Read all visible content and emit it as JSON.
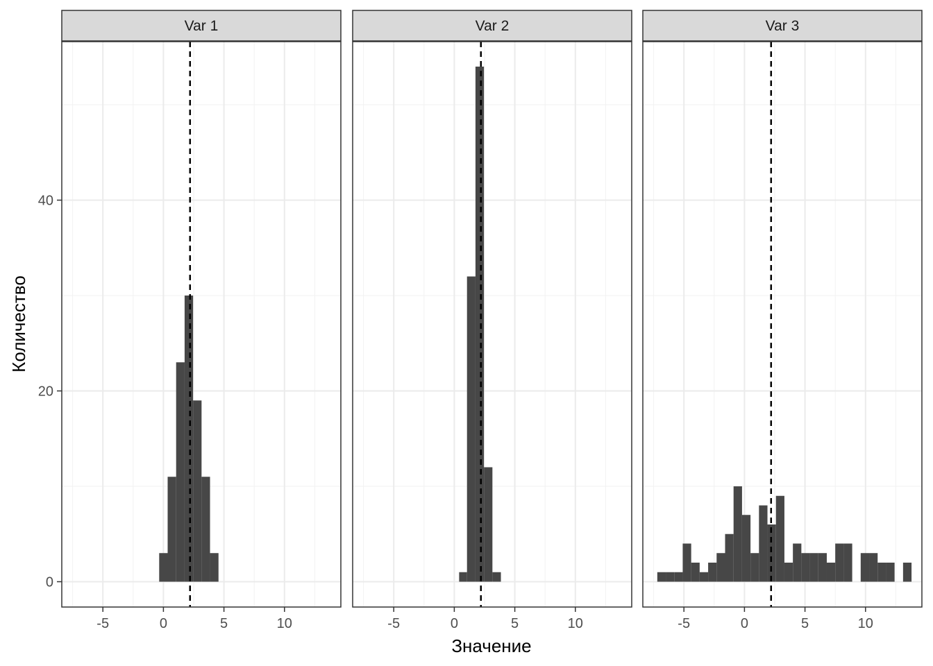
{
  "chart_data": {
    "type": "bar",
    "xlabel": "Значение",
    "ylabel": "Количество",
    "xlim": [
      -8,
      15
    ],
    "ylim": [
      -2.5,
      57.5
    ],
    "x_ticks": [
      -5,
      0,
      5,
      10
    ],
    "x_tick_labels": [
      "-5",
      "0",
      "5",
      "10"
    ],
    "y_ticks": [
      0,
      20,
      40
    ],
    "y_tick_labels": [
      "0",
      "20",
      "40"
    ],
    "grid": true,
    "bar_color": "#474747",
    "reference_line": {
      "x": 2.2,
      "style": "dashed",
      "color": "#000000"
    },
    "facets": [
      {
        "label": "Var 1",
        "bins": [
          {
            "x0": -0.35,
            "x1": 0.35,
            "count": 3
          },
          {
            "x0": 0.35,
            "x1": 1.05,
            "count": 11
          },
          {
            "x0": 1.05,
            "x1": 1.75,
            "count": 23
          },
          {
            "x0": 1.75,
            "x1": 2.45,
            "count": 30
          },
          {
            "x0": 2.45,
            "x1": 3.15,
            "count": 19
          },
          {
            "x0": 3.15,
            "x1": 3.85,
            "count": 11
          },
          {
            "x0": 3.85,
            "x1": 4.55,
            "count": 3
          }
        ]
      },
      {
        "label": "Var 2",
        "bins": [
          {
            "x0": 0.4,
            "x1": 1.05,
            "count": 1
          },
          {
            "x0": 1.05,
            "x1": 1.75,
            "count": 32
          },
          {
            "x0": 1.75,
            "x1": 2.45,
            "count": 54
          },
          {
            "x0": 2.45,
            "x1": 3.15,
            "count": 12
          },
          {
            "x0": 3.15,
            "x1": 3.85,
            "count": 1
          }
        ]
      },
      {
        "label": "Var 3",
        "bins": [
          {
            "x0": -7.2,
            "x1": -6.5,
            "count": 1
          },
          {
            "x0": -6.5,
            "x1": -5.8,
            "count": 1
          },
          {
            "x0": -5.8,
            "x1": -5.1,
            "count": 1
          },
          {
            "x0": -5.1,
            "x1": -4.4,
            "count": 4
          },
          {
            "x0": -4.4,
            "x1": -3.7,
            "count": 2
          },
          {
            "x0": -3.7,
            "x1": -3.0,
            "count": 1
          },
          {
            "x0": -3.0,
            "x1": -2.3,
            "count": 2
          },
          {
            "x0": -2.3,
            "x1": -1.6,
            "count": 3
          },
          {
            "x0": -1.6,
            "x1": -0.9,
            "count": 5
          },
          {
            "x0": -0.9,
            "x1": -0.2,
            "count": 10
          },
          {
            "x0": -0.2,
            "x1": 0.5,
            "count": 7
          },
          {
            "x0": 0.5,
            "x1": 1.2,
            "count": 3
          },
          {
            "x0": 1.2,
            "x1": 1.9,
            "count": 8
          },
          {
            "x0": 1.9,
            "x1": 2.6,
            "count": 6
          },
          {
            "x0": 2.6,
            "x1": 3.3,
            "count": 9
          },
          {
            "x0": 3.3,
            "x1": 4.0,
            "count": 2
          },
          {
            "x0": 4.0,
            "x1": 4.7,
            "count": 4
          },
          {
            "x0": 4.7,
            "x1": 5.4,
            "count": 3
          },
          {
            "x0": 5.4,
            "x1": 6.1,
            "count": 3
          },
          {
            "x0": 6.1,
            "x1": 6.8,
            "count": 3
          },
          {
            "x0": 6.8,
            "x1": 7.5,
            "count": 2
          },
          {
            "x0": 7.5,
            "x1": 8.2,
            "count": 4
          },
          {
            "x0": 8.2,
            "x1": 8.9,
            "count": 4
          },
          {
            "x0": 9.6,
            "x1": 10.3,
            "count": 3
          },
          {
            "x0": 10.3,
            "x1": 11.0,
            "count": 3
          },
          {
            "x0": 11.0,
            "x1": 11.7,
            "count": 2
          },
          {
            "x0": 11.7,
            "x1": 12.4,
            "count": 2
          },
          {
            "x0": 13.1,
            "x1": 13.8,
            "count": 2
          }
        ]
      }
    ]
  }
}
